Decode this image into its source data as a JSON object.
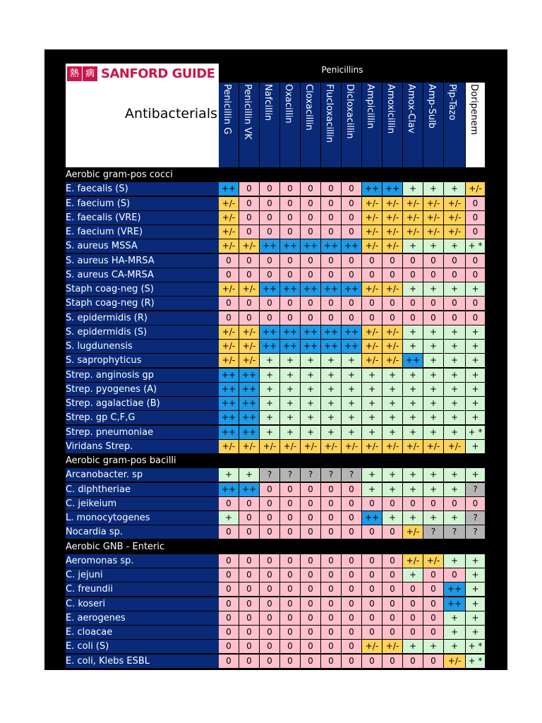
{
  "brand": {
    "mark1": "熱",
    "mark2": "病",
    "name": "SANFORD GUIDE"
  },
  "title": "Antibacterials",
  "class_header": "Penicillins",
  "columns": [
    "Penicillin G",
    "Penicillin VK",
    "Nafcillin",
    "Oxacillin",
    "Cloxacillin",
    "Flucloxacillin",
    "Dicloxacillin",
    "Ampicillin",
    "Amoxicillin",
    "Amox-Clav",
    "Amp-Sulb",
    "Pip-Tazo",
    "Doripenem"
  ],
  "sections": [
    {
      "name": "Aerobic gram-pos cocci",
      "rows": [
        {
          "label": "E. faecalis (S)",
          "values": [
            "++",
            "0",
            "0",
            "0",
            "0",
            "0",
            "0",
            "++",
            "++",
            "+",
            "+",
            "+",
            "+/-"
          ]
        },
        {
          "label": "E. faecium (S)",
          "values": [
            "+/-",
            "0",
            "0",
            "0",
            "0",
            "0",
            "0",
            "+/-",
            "+/-",
            "+/-",
            "+/-",
            "+/-",
            "0"
          ]
        },
        {
          "label": "E. faecalis (VRE)",
          "values": [
            "+/-",
            "0",
            "0",
            "0",
            "0",
            "0",
            "0",
            "+/-",
            "+/-",
            "+/-",
            "+/-",
            "+/-",
            "0"
          ]
        },
        {
          "label": "E. faecium (VRE)",
          "values": [
            "+/-",
            "0",
            "0",
            "0",
            "0",
            "0",
            "0",
            "+/-",
            "+/-",
            "+/-",
            "+/-",
            "+/-",
            "0"
          ]
        },
        {
          "label": "S. aureus MSSA",
          "values": [
            "+/-",
            "+/-",
            "++",
            "++",
            "++",
            "++",
            "++",
            "+/-",
            "+/-",
            "+",
            "+",
            "+",
            "+ *"
          ]
        },
        {
          "label": "S. aureus HA-MRSA",
          "values": [
            "0",
            "0",
            "0",
            "0",
            "0",
            "0",
            "0",
            "0",
            "0",
            "0",
            "0",
            "0",
            "0"
          ]
        },
        {
          "label": "S. aureus CA-MRSA",
          "values": [
            "0",
            "0",
            "0",
            "0",
            "0",
            "0",
            "0",
            "0",
            "0",
            "0",
            "0",
            "0",
            "0"
          ]
        },
        {
          "label": "Staph coag-neg (S)",
          "values": [
            "+/-",
            "+/-",
            "++",
            "++",
            "++",
            "++",
            "++",
            "+/-",
            "+/-",
            "+",
            "+",
            "+",
            "+"
          ]
        },
        {
          "label": "Staph coag-neg (R)",
          "values": [
            "0",
            "0",
            "0",
            "0",
            "0",
            "0",
            "0",
            "0",
            "0",
            "0",
            "0",
            "0",
            "0"
          ]
        },
        {
          "label": "S. epidermidis (R)",
          "values": [
            "0",
            "0",
            "0",
            "0",
            "0",
            "0",
            "0",
            "0",
            "0",
            "0",
            "0",
            "0",
            "0"
          ]
        },
        {
          "label": "S. epidermidis (S)",
          "values": [
            "+/-",
            "+/-",
            "++",
            "++",
            "++",
            "++",
            "++",
            "+/-",
            "+/-",
            "+",
            "+",
            "+",
            "+"
          ]
        },
        {
          "label": "S. lugdunensis",
          "values": [
            "+/-",
            "+/-",
            "++",
            "++",
            "++",
            "++",
            "++",
            "+/-",
            "+/-",
            "+",
            "+",
            "+",
            "+"
          ]
        },
        {
          "label": "S. saprophyticus",
          "values": [
            "+/-",
            "+/-",
            "+",
            "+",
            "+",
            "+",
            "+",
            "+/-",
            "+/-",
            "++",
            "+",
            "+",
            "+"
          ]
        },
        {
          "label": "Strep. anginosis gp",
          "values": [
            "++",
            "++",
            "+",
            "+",
            "+",
            "+",
            "+",
            "+",
            "+",
            "+",
            "+",
            "+",
            "+"
          ]
        },
        {
          "label": "Strep. pyogenes (A)",
          "values": [
            "++",
            "++",
            "+",
            "+",
            "+",
            "+",
            "+",
            "+",
            "+",
            "+",
            "+",
            "+",
            "+"
          ]
        },
        {
          "label": "Strep. agalactiae (B)",
          "values": [
            "++",
            "++",
            "+",
            "+",
            "+",
            "+",
            "+",
            "+",
            "+",
            "+",
            "+",
            "+",
            "+"
          ]
        },
        {
          "label": "Strep. gp C,F,G",
          "values": [
            "++",
            "++",
            "+",
            "+",
            "+",
            "+",
            "+",
            "+",
            "+",
            "+",
            "+",
            "+",
            "+"
          ]
        },
        {
          "label": "Strep. pneumoniae",
          "values": [
            "++",
            "++",
            "+",
            "+",
            "+",
            "+",
            "+",
            "+",
            "+",
            "+",
            "+",
            "+",
            "+ *"
          ]
        },
        {
          "label": "Viridans Strep.",
          "values": [
            "+/-",
            "+/-",
            "+/-",
            "+/-",
            "+/-",
            "+/-",
            "+/-",
            "+/-",
            "+/-",
            "+/-",
            "+/-",
            "+/-",
            "+"
          ]
        }
      ]
    },
    {
      "name": "Aerobic gram-pos bacilli",
      "rows": [
        {
          "label": "Arcanobacter. sp",
          "values": [
            "+",
            "+",
            "?",
            "?",
            "?",
            "?",
            "?",
            "+",
            "+",
            "+",
            "+",
            "+",
            "+"
          ]
        },
        {
          "label": "C. diphtheriae",
          "values": [
            "++",
            "++",
            "0",
            "0",
            "0",
            "0",
            "0",
            "+",
            "+",
            "+",
            "+",
            "+",
            "?"
          ]
        },
        {
          "label": "C. jeikeium",
          "values": [
            "0",
            "0",
            "0",
            "0",
            "0",
            "0",
            "0",
            "0",
            "0",
            "0",
            "0",
            "0",
            "0"
          ]
        },
        {
          "label": "L. monocytogenes",
          "values": [
            "+",
            "0",
            "0",
            "0",
            "0",
            "0",
            "0",
            "++",
            "+",
            "+",
            "+",
            "+",
            "?"
          ]
        },
        {
          "label": "Nocardia sp.",
          "values": [
            "0",
            "0",
            "0",
            "0",
            "0",
            "0",
            "0",
            "0",
            "0",
            "+/-",
            "?",
            "?",
            "?"
          ]
        }
      ]
    },
    {
      "name": "Aerobic GNB - Enteric",
      "rows": [
        {
          "label": "Aeromonas sp.",
          "values": [
            "0",
            "0",
            "0",
            "0",
            "0",
            "0",
            "0",
            "0",
            "0",
            "+/-",
            "+/-",
            "+",
            "+"
          ]
        },
        {
          "label": "C. jejuni",
          "values": [
            "0",
            "0",
            "0",
            "0",
            "0",
            "0",
            "0",
            "0",
            "0",
            "+",
            "0",
            "0",
            "+"
          ]
        },
        {
          "label": "C. freundii",
          "values": [
            "0",
            "0",
            "0",
            "0",
            "0",
            "0",
            "0",
            "0",
            "0",
            "0",
            "0",
            "++",
            "+"
          ]
        },
        {
          "label": "C. koseri",
          "values": [
            "0",
            "0",
            "0",
            "0",
            "0",
            "0",
            "0",
            "0",
            "0",
            "0",
            "0",
            "++",
            "+"
          ]
        },
        {
          "label": "E. aerogenes",
          "values": [
            "0",
            "0",
            "0",
            "0",
            "0",
            "0",
            "0",
            "0",
            "0",
            "0",
            "0",
            "+",
            "+"
          ]
        },
        {
          "label": "E. cloacae",
          "values": [
            "0",
            "0",
            "0",
            "0",
            "0",
            "0",
            "0",
            "0",
            "0",
            "0",
            "0",
            "+",
            "+"
          ]
        },
        {
          "label": "E. coli (S)",
          "values": [
            "0",
            "0",
            "0",
            "0",
            "0",
            "0",
            "0",
            "+/-",
            "+/-",
            "+",
            "+",
            "+",
            "+ *"
          ]
        },
        {
          "label": "E. coli, Klebs ESBL",
          "values": [
            "0",
            "0",
            "0",
            "0",
            "0",
            "0",
            "0",
            "0",
            "0",
            "0",
            "0",
            "+/-",
            "+ *"
          ]
        }
      ]
    }
  ],
  "colors": {
    "++": "#1e9ae6",
    "+": "#d4f5d4",
    "+/-": "#ffd25a",
    "0": "#ffc0cc",
    "?": "#b4b4b4",
    "label_bg": "#0a2a78"
  }
}
